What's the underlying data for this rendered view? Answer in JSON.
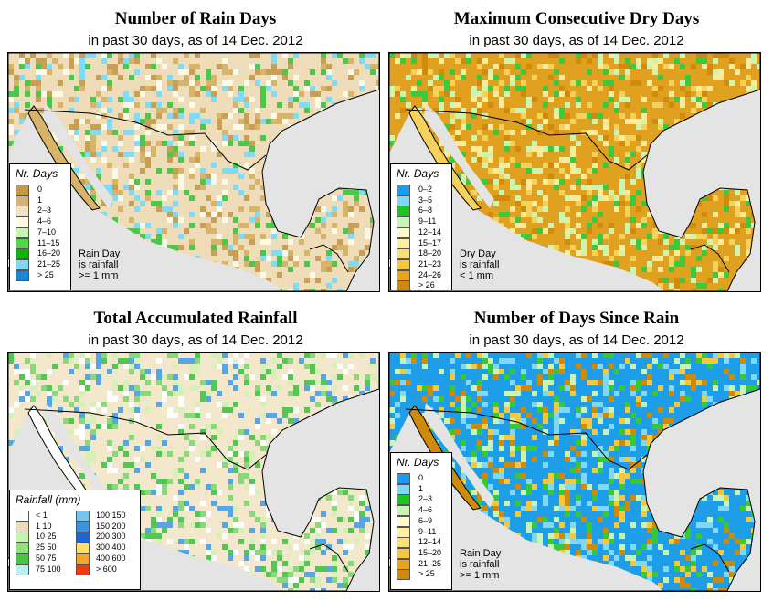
{
  "palette": {
    "land": "#f4e6c8",
    "water": "#e4e4e4",
    "border": "#000000"
  },
  "panels": [
    {
      "title": "Number of Rain Days",
      "subtitle": "in past 30 days, as of  14 Dec. 2012",
      "base": "#efdcb8",
      "speckle": [
        "#d8b46a",
        "#c8a055",
        "#fdfbe8",
        "#4cc74c",
        "#7fdcf4"
      ],
      "legend_title": "Nr. Days",
      "legend_items": [
        {
          "label": "0",
          "color": "#c69a44"
        },
        {
          "label": "1",
          "color": "#d4b27a"
        },
        {
          "label": "2–3",
          "color": "#f1e4c6"
        },
        {
          "label": "4–6",
          "color": "#fdfbde"
        },
        {
          "label": "7–10",
          "color": "#c9f5b4"
        },
        {
          "label": "11–15",
          "color": "#52d64a"
        },
        {
          "label": "16–20",
          "color": "#10b010"
        },
        {
          "label": "21–25",
          "color": "#7fd8f6"
        },
        {
          "label": "> 25",
          "color": "#1a86d6"
        }
      ],
      "note": [
        "Rain Day",
        "is rainfall",
        ">= 1 mm"
      ]
    },
    {
      "title": "Maximum Consecutive Dry Days",
      "subtitle": "in past 30 days, as of  14 Dec. 2012",
      "base": "#e0a020",
      "speckle": [
        "#f6d25a",
        "#fbeb9a",
        "#d18a0a",
        "#ccf5b0",
        "#3ec83e"
      ],
      "legend_title": "Nr. Days",
      "legend_items": [
        {
          "label": "0–2",
          "color": "#1a9cf0"
        },
        {
          "label": "3–5",
          "color": "#7fd8f6"
        },
        {
          "label": "6–8",
          "color": "#1fc41f"
        },
        {
          "label": "9–11",
          "color": "#c9f5b4"
        },
        {
          "label": "12–14",
          "color": "#fdfbcc"
        },
        {
          "label": "15–17",
          "color": "#fdf0a0"
        },
        {
          "label": "18–20",
          "color": "#fbe170"
        },
        {
          "label": "21–23",
          "color": "#f6c83e"
        },
        {
          "label": "24–26",
          "color": "#e8a41a"
        },
        {
          "label": "> 26",
          "color": "#d08a0a"
        }
      ],
      "note": [
        "Dry Day",
        "is rainfall",
        "< 1 mm"
      ]
    },
    {
      "title": "Total Accumulated Rainfall",
      "subtitle": "in past 30 days, as of  14 Dec. 2012",
      "base": "#f4e8cc",
      "speckle": [
        "#ffffff",
        "#d6f0b8",
        "#8ad87a",
        "#52c852",
        "#56a6e6"
      ],
      "legend_title": "Rainfall (mm)",
      "legend_items": [
        {
          "label": "< 1",
          "color": "#ffffff"
        },
        {
          "label": "1   10",
          "color": "#ebdcbc"
        },
        {
          "label": "10   25",
          "color": "#c7f3b0"
        },
        {
          "label": "25   50",
          "color": "#8fe07a"
        },
        {
          "label": "50   75",
          "color": "#46c646"
        },
        {
          "label": "75  100",
          "color": "#b8f0f4"
        },
        {
          "label": "100  150",
          "color": "#76c6f2"
        },
        {
          "label": "150  200",
          "color": "#3a94e0"
        },
        {
          "label": "200  300",
          "color": "#1f66d4"
        },
        {
          "label": "300  400",
          "color": "#fbe170"
        },
        {
          "label": "400  600",
          "color": "#f6a62a"
        },
        {
          "label": "> 600",
          "color": "#ee3a10"
        }
      ],
      "note": []
    },
    {
      "title": "Number of Days Since Rain",
      "subtitle": "in past 30 days, as of  14 Dec. 2012",
      "base": "#1e9ee8",
      "speckle": [
        "#d08a0a",
        "#f6c83e",
        "#36c836",
        "#c9f5b4",
        "#80d8f4"
      ],
      "legend_title": "Nr. Days",
      "legend_items": [
        {
          "label": "0",
          "color": "#1a9cf0"
        },
        {
          "label": "1",
          "color": "#7fd8f6"
        },
        {
          "label": "2–3",
          "color": "#1fc41f"
        },
        {
          "label": "4–6",
          "color": "#c9f5b4"
        },
        {
          "label": "6–9",
          "color": "#fdfbcc"
        },
        {
          "label": "9–11",
          "color": "#fdf0a0"
        },
        {
          "label": "12–14",
          "color": "#fbe170"
        },
        {
          "label": "15–20",
          "color": "#f6c83e"
        },
        {
          "label": "21–25",
          "color": "#e8a41a"
        },
        {
          "label": "> 25",
          "color": "#d08a0a"
        }
      ],
      "note": [
        "Rain Day",
        "is rainfall",
        ">= 1 mm"
      ]
    }
  ]
}
